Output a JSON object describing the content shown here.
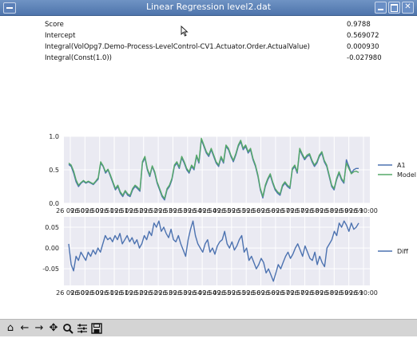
{
  "window": {
    "title": "Linear Regression level2.dat"
  },
  "stats": [
    {
      "label": "Score",
      "value": "0.9788"
    },
    {
      "label": "Intercept",
      "value": "0.569072"
    },
    {
      "label": "Integral(VolOpg7.Demo-Process-LevelControl-CV1.Actuator.Order.ActualValue)",
      "value": "0.000930"
    },
    {
      "label": "Integral(Const(1.0))",
      "value": "-0.027980"
    }
  ],
  "toolbar": {
    "icons": [
      "home-icon",
      "back-arrow-icon",
      "forward-arrow-icon",
      "pan-icon",
      "zoom-icon",
      "subplots-icon",
      "save-icon"
    ]
  },
  "chart_data": [
    {
      "type": "line",
      "x_ticks": [
        "26 09:50",
        "26 09:50",
        "26 09:51",
        "26 09:51",
        "26 09:52",
        "26 09:52",
        "26 09:53",
        "26 09:53",
        "26 09:54",
        "26 09:54",
        "26 09:55",
        "26 09:55",
        "26 09:56",
        "26 09:56",
        "26 09:57",
        "26 09:57",
        "26 09:58",
        "26 09:58",
        "26 09:59",
        "26 09:59",
        "26 10:00"
      ],
      "ylim": [
        0.0,
        1.0
      ],
      "y_ticks": [
        "0.0",
        "0.5",
        "1.0"
      ],
      "legend": "right",
      "colors": {
        "A1": "#4c72b0",
        "Model": "#55a868"
      },
      "series": [
        {
          "name": "A1",
          "values": [
            0.58,
            0.55,
            0.45,
            0.32,
            0.25,
            0.3,
            0.33,
            0.3,
            0.32,
            0.3,
            0.28,
            0.32,
            0.36,
            0.6,
            0.55,
            0.45,
            0.5,
            0.4,
            0.3,
            0.2,
            0.25,
            0.15,
            0.1,
            0.18,
            0.12,
            0.1,
            0.2,
            0.25,
            0.22,
            0.18,
            0.6,
            0.68,
            0.5,
            0.4,
            0.55,
            0.45,
            0.3,
            0.2,
            0.1,
            0.05,
            0.2,
            0.25,
            0.35,
            0.55,
            0.6,
            0.52,
            0.68,
            0.6,
            0.5,
            0.45,
            0.55,
            0.5,
            0.7,
            0.6,
            0.95,
            0.85,
            0.75,
            0.7,
            0.8,
            0.7,
            0.6,
            0.55,
            0.68,
            0.6,
            0.85,
            0.8,
            0.7,
            0.62,
            0.72,
            0.85,
            0.92,
            0.8,
            0.85,
            0.75,
            0.8,
            0.65,
            0.55,
            0.4,
            0.2,
            0.08,
            0.25,
            0.35,
            0.42,
            0.3,
            0.2,
            0.15,
            0.12,
            0.25,
            0.3,
            0.25,
            0.22,
            0.5,
            0.55,
            0.45,
            0.8,
            0.72,
            0.65,
            0.7,
            0.72,
            0.62,
            0.55,
            0.6,
            0.7,
            0.75,
            0.62,
            0.55,
            0.4,
            0.25,
            0.2,
            0.35,
            0.45,
            0.35,
            0.3,
            0.65,
            0.55,
            0.45,
            0.5,
            0.52,
            0.52
          ]
        },
        {
          "name": "Model",
          "values": [
            0.6,
            0.57,
            0.48,
            0.35,
            0.27,
            0.31,
            0.34,
            0.31,
            0.33,
            0.31,
            0.29,
            0.33,
            0.38,
            0.62,
            0.56,
            0.47,
            0.51,
            0.42,
            0.32,
            0.22,
            0.27,
            0.17,
            0.12,
            0.19,
            0.14,
            0.12,
            0.22,
            0.27,
            0.24,
            0.2,
            0.62,
            0.7,
            0.52,
            0.42,
            0.56,
            0.47,
            0.32,
            0.22,
            0.12,
            0.07,
            0.22,
            0.27,
            0.37,
            0.57,
            0.62,
            0.54,
            0.7,
            0.62,
            0.52,
            0.47,
            0.57,
            0.52,
            0.72,
            0.62,
            0.97,
            0.87,
            0.77,
            0.72,
            0.82,
            0.72,
            0.62,
            0.57,
            0.7,
            0.62,
            0.87,
            0.82,
            0.72,
            0.64,
            0.74,
            0.87,
            0.94,
            0.82,
            0.87,
            0.77,
            0.82,
            0.67,
            0.57,
            0.42,
            0.22,
            0.1,
            0.27,
            0.37,
            0.44,
            0.32,
            0.22,
            0.17,
            0.14,
            0.27,
            0.32,
            0.27,
            0.24,
            0.52,
            0.57,
            0.47,
            0.82,
            0.74,
            0.67,
            0.72,
            0.74,
            0.64,
            0.57,
            0.62,
            0.72,
            0.77,
            0.64,
            0.57,
            0.42,
            0.27,
            0.22,
            0.37,
            0.47,
            0.37,
            0.32,
            0.6,
            0.52,
            0.44,
            0.47,
            0.48,
            0.46
          ]
        }
      ]
    },
    {
      "type": "line",
      "x_ticks": [
        "26 09:50",
        "26 09:50",
        "26 09:51",
        "26 09:51",
        "26 09:52",
        "26 09:52",
        "26 09:53",
        "26 09:53",
        "26 09:54",
        "26 09:54",
        "26 09:55",
        "26 09:55",
        "26 09:56",
        "26 09:56",
        "26 09:57",
        "26 09:57",
        "26 09:58",
        "26 09:58",
        "26 09:59",
        "26 09:59",
        "26 10:00"
      ],
      "ylim": [
        -0.09,
        0.075
      ],
      "y_ticks": [
        "0.05",
        "0.00",
        "-0.05"
      ],
      "y_tick_values": [
        0.05,
        0.0,
        -0.05
      ],
      "legend": "right",
      "colors": {
        "Diff": "#4c72b0"
      },
      "series": [
        {
          "name": "Diff",
          "values": [
            0.01,
            -0.04,
            -0.055,
            -0.02,
            -0.03,
            -0.01,
            -0.02,
            -0.03,
            -0.01,
            -0.02,
            -0.005,
            -0.015,
            0.0,
            -0.01,
            0.01,
            0.03,
            0.02,
            0.025,
            0.015,
            0.03,
            0.02,
            0.035,
            0.01,
            0.02,
            0.03,
            0.015,
            0.025,
            0.01,
            0.02,
            0.0,
            0.01,
            0.03,
            0.02,
            0.04,
            0.03,
            0.06,
            0.05,
            0.065,
            0.04,
            0.05,
            0.035,
            0.025,
            0.045,
            0.02,
            0.015,
            0.03,
            0.01,
            -0.005,
            -0.02,
            0.02,
            0.045,
            0.065,
            0.03,
            0.01,
            0.0,
            -0.01,
            0.01,
            0.02,
            -0.01,
            0.0,
            -0.015,
            0.005,
            0.015,
            0.02,
            0.04,
            0.01,
            0.0,
            0.015,
            -0.005,
            0.005,
            0.02,
            0.03,
            -0.01,
            0.0,
            -0.03,
            -0.02,
            -0.035,
            -0.05,
            -0.04,
            -0.025,
            -0.035,
            -0.06,
            -0.05,
            -0.065,
            -0.08,
            -0.06,
            -0.04,
            -0.05,
            -0.035,
            -0.02,
            -0.01,
            -0.025,
            -0.015,
            0.0,
            0.01,
            -0.005,
            -0.02,
            0.005,
            -0.01,
            -0.025,
            -0.03,
            -0.01,
            -0.04,
            -0.02,
            -0.035,
            -0.045,
            0.0,
            0.01,
            0.02,
            0.04,
            0.03,
            0.06,
            0.05,
            0.065,
            0.055,
            0.04,
            0.06,
            0.045,
            0.05,
            0.06
          ]
        }
      ]
    }
  ]
}
